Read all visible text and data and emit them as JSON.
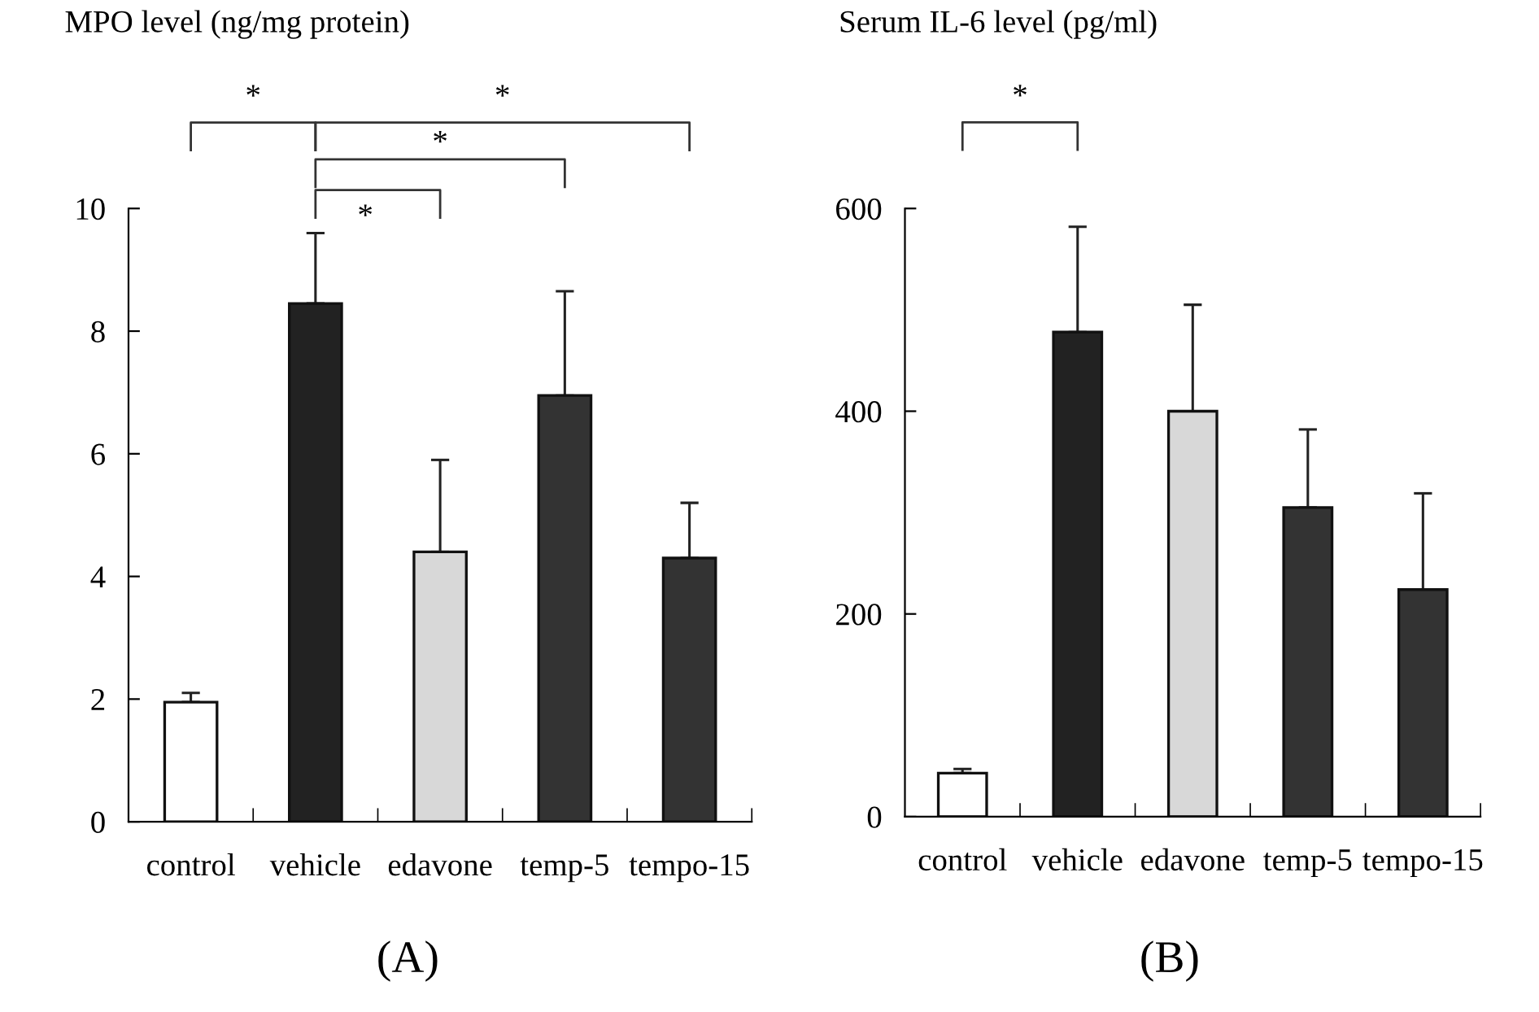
{
  "chart_data": [
    {
      "type": "bar",
      "title": "MPO level (ng/mg protein)",
      "categories": [
        "control",
        "vehicle",
        "edavone",
        "temp-5",
        "tempo-15"
      ],
      "values": [
        1.95,
        8.45,
        4.4,
        6.95,
        4.3
      ],
      "errors": [
        0.15,
        1.15,
        1.5,
        1.7,
        0.9
      ],
      "colors": [
        "#ffffff",
        "#222222",
        "#d8d8d8",
        "#333333",
        "#333333"
      ],
      "ylim": [
        0,
        10
      ],
      "yticks": [
        0,
        2,
        4,
        6,
        8,
        10
      ],
      "grid": false,
      "legend": false,
      "annotations": [
        "*",
        "*",
        "*",
        "*",
        "(A)"
      ]
    },
    {
      "type": "bar",
      "title": "Serum IL-6 level (pg/ml)",
      "categories": [
        "control",
        "vehicle",
        "edavone",
        "temp-5",
        "tempo-15"
      ],
      "values": [
        43,
        478,
        400,
        305,
        224
      ],
      "errors": [
        4,
        104,
        105,
        77,
        95
      ],
      "colors": [
        "#ffffff",
        "#222222",
        "#d8d8d8",
        "#333333",
        "#333333"
      ],
      "ylim": [
        0,
        600
      ],
      "yticks": [
        0,
        200,
        400,
        600
      ],
      "grid": false,
      "legend": false,
      "annotations": [
        "*",
        "(B)"
      ]
    }
  ]
}
